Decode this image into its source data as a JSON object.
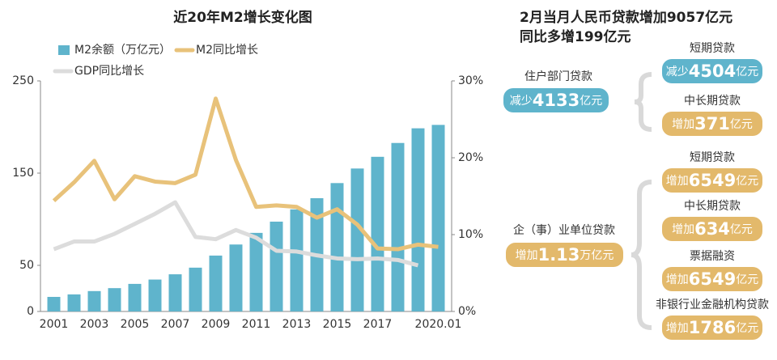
{
  "chart_data": {
    "type": "bar",
    "title": "近20年M2增长变化图",
    "categories": [
      "2001",
      null,
      "2003",
      null,
      "2005",
      null,
      "2007",
      null,
      "2009",
      null,
      "2011",
      null,
      "2013",
      null,
      "2015",
      null,
      "2017",
      null,
      null,
      "2020.01"
    ],
    "series": [
      {
        "name": "M2余额（万亿元）",
        "type": "bar",
        "axis": "y",
        "color": "#5fb4cc",
        "values": [
          15.8,
          18.5,
          22.1,
          25.3,
          29.9,
          34.6,
          40.3,
          47.5,
          60.6,
          72.6,
          85.2,
          97.4,
          110.7,
          122.8,
          139.2,
          155.0,
          167.7,
          182.7,
          198.6,
          202.3
        ]
      },
      {
        "name": "M2同比增长",
        "type": "line",
        "axis": "y2",
        "color": "#e8c27a",
        "values": [
          14.4,
          16.8,
          19.6,
          14.6,
          17.6,
          16.9,
          16.7,
          17.8,
          27.7,
          19.7,
          13.6,
          13.8,
          13.6,
          12.2,
          13.3,
          11.3,
          8.2,
          8.1,
          8.7,
          8.4
        ]
      },
      {
        "name": "GDP同比增长",
        "type": "line",
        "axis": "y2",
        "color": "#dcdcdc",
        "values": [
          8.1,
          9.1,
          9.1,
          10.1,
          11.4,
          12.7,
          14.2,
          9.7,
          9.4,
          10.6,
          9.6,
          7.9,
          7.8,
          7.3,
          6.9,
          6.8,
          6.9,
          6.7,
          6.0,
          null
        ]
      }
    ],
    "ylim": [
      0,
      250
    ],
    "yticks": [
      0,
      50,
      150,
      250
    ],
    "y2lim": [
      0,
      30
    ],
    "y2ticks": [
      {
        "value": 0,
        "label": "0%"
      },
      {
        "value": 10,
        "label": "10%"
      },
      {
        "value": 20,
        "label": "20%"
      },
      {
        "value": 30,
        "label": "30%"
      }
    ]
  },
  "panel": {
    "title": [
      "2月当月人民币贷款增加9057亿元",
      "同比多增199亿元"
    ],
    "groups": [
      {
        "label": "住户部门贷款",
        "box": {
          "prefix": "减少",
          "amount": "4133",
          "unit": "亿元"
        },
        "items": [
          {
            "label": "短期贷款",
            "box": {
              "prefix": "减少",
              "amount": "4504",
              "unit": "亿元"
            }
          },
          {
            "label": "中长期贷款",
            "box": {
              "prefix": "增加",
              "amount": "371",
              "unit": "亿元"
            }
          }
        ]
      },
      {
        "label": "企（事）业单位贷款",
        "box": {
          "prefix": "增加",
          "amount": "1.13",
          "unit": "万亿元"
        },
        "items": [
          {
            "label": "短期贷款",
            "box": {
              "prefix": "增加",
              "amount": "6549",
              "unit": "亿元"
            }
          },
          {
            "label": "中长期贷款",
            "box": {
              "prefix": "增加",
              "amount": "634",
              "unit": "亿元"
            }
          },
          {
            "label": "票据融资",
            "box": {
              "prefix": "增加",
              "amount": "6549",
              "unit": "亿元"
            }
          },
          {
            "label": "非银行业金融机构贷款",
            "box": {
              "prefix": "增加",
              "amount": "1786",
              "unit": "亿元"
            }
          }
        ]
      }
    ]
  }
}
